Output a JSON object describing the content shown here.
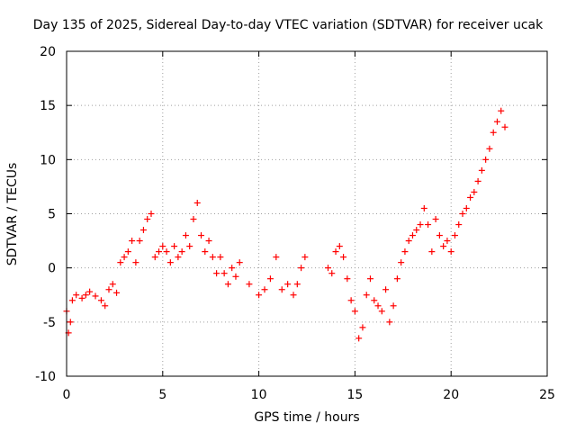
{
  "chart_data": {
    "type": "scatter",
    "title": "Day 135 of 2025, Sidereal Day-to-day VTEC variation (SDTVAR) for receiver ucak",
    "xlabel": "GPS time / hours",
    "ylabel": "SDTVAR / TECUs",
    "xlim": [
      0,
      25
    ],
    "ylim": [
      -10,
      20
    ],
    "xticks": [
      "0",
      "5",
      "10",
      "15",
      "20",
      "25"
    ],
    "yticks": [
      "-10",
      "-5",
      "0",
      "5",
      "10",
      "15",
      "20"
    ],
    "grid": true,
    "marker": "+",
    "color": "#ff0000",
    "series": [
      {
        "name": "SDTVAR",
        "x": [
          0.0,
          0.1,
          0.2,
          0.3,
          0.5,
          0.8,
          1.0,
          1.2,
          1.5,
          1.8,
          2.0,
          2.2,
          2.4,
          2.6,
          2.8,
          3.0,
          3.2,
          3.4,
          3.6,
          3.8,
          4.0,
          4.2,
          4.4,
          4.6,
          4.8,
          5.0,
          5.2,
          5.4,
          5.6,
          5.8,
          6.0,
          6.2,
          6.4,
          6.6,
          6.8,
          7.0,
          7.2,
          7.4,
          7.6,
          7.8,
          8.0,
          8.2,
          8.4,
          8.6,
          8.8,
          9.0,
          9.5,
          10.0,
          10.3,
          10.6,
          10.9,
          11.2,
          11.5,
          11.8,
          12.0,
          12.2,
          12.4,
          13.6,
          13.8,
          14.0,
          14.2,
          14.4,
          14.6,
          14.8,
          15.0,
          15.2,
          15.4,
          15.6,
          15.8,
          16.0,
          16.2,
          16.4,
          16.6,
          16.8,
          17.0,
          17.2,
          17.4,
          17.6,
          17.8,
          18.0,
          18.2,
          18.4,
          18.6,
          18.8,
          19.0,
          19.2,
          19.4,
          19.6,
          19.8,
          20.0,
          20.2,
          20.4,
          20.6,
          20.8,
          21.0,
          21.2,
          21.4,
          21.6,
          21.8,
          22.0,
          22.2,
          22.4,
          22.6,
          22.8
        ],
        "values": [
          -4.0,
          -6.0,
          -5.0,
          -3.0,
          -2.5,
          -2.8,
          -2.5,
          -2.2,
          -2.6,
          -3.0,
          -3.5,
          -2.0,
          -1.5,
          -2.3,
          0.5,
          1.0,
          1.5,
          2.5,
          0.5,
          2.5,
          3.5,
          4.5,
          5.0,
          1.0,
          1.5,
          2.0,
          1.5,
          0.5,
          2.0,
          1.0,
          1.5,
          3.0,
          2.0,
          4.5,
          6.0,
          3.0,
          1.5,
          2.5,
          1.0,
          -0.5,
          1.0,
          -0.5,
          -1.5,
          0.0,
          -0.8,
          0.5,
          -1.5,
          -2.5,
          -2.0,
          -1.0,
          1.0,
          -2.0,
          -1.5,
          -2.5,
          -1.5,
          0.0,
          1.0,
          0.0,
          -0.5,
          1.5,
          2.0,
          1.0,
          -1.0,
          -3.0,
          -4.0,
          -6.5,
          -5.5,
          -2.5,
          -1.0,
          -3.0,
          -3.5,
          -4.0,
          -2.0,
          -5.0,
          -3.5,
          -1.0,
          0.5,
          1.5,
          2.5,
          3.0,
          3.5,
          4.0,
          5.5,
          4.0,
          1.5,
          4.5,
          3.0,
          2.0,
          2.5,
          1.5,
          3.0,
          4.0,
          5.0,
          5.5,
          6.5,
          7.0,
          8.0,
          9.0,
          10.0,
          11.0,
          12.5,
          13.5,
          14.5,
          13.0
        ]
      }
    ]
  }
}
